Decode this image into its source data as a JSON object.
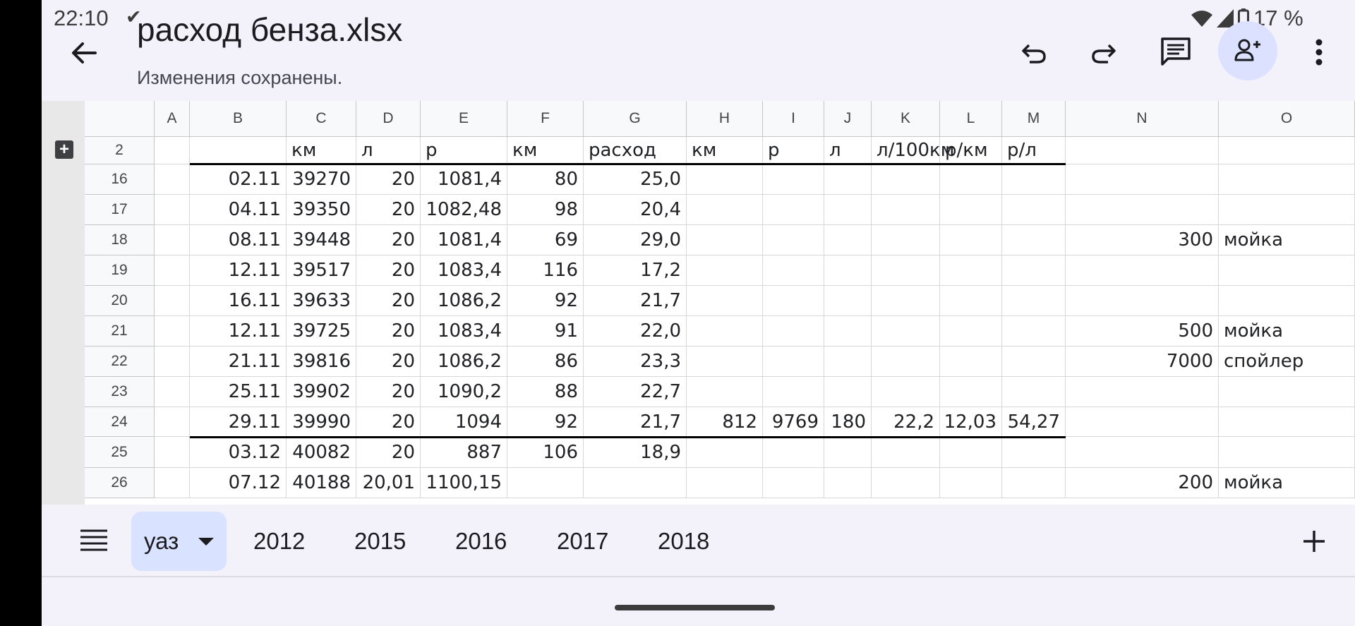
{
  "status_bar": {
    "time": "22:10",
    "battery": "17 %",
    "icons": [
      "check-icon",
      "wifi-icon",
      "signal-icon",
      "battery-icon"
    ]
  },
  "app_bar": {
    "title": "расход бенза.xlsx",
    "save_status": "Изменения сохранены.",
    "icons": [
      "back-arrow-icon",
      "undo-icon",
      "redo-icon",
      "comment-icon",
      "add-person-icon",
      "more-vert-icon"
    ],
    "accent": "#dbe1ff"
  },
  "grid": {
    "columns": [
      "A",
      "B",
      "C",
      "D",
      "E",
      "F",
      "G",
      "H",
      "I",
      "J",
      "K",
      "L",
      "M",
      "N",
      "O"
    ],
    "rows": [
      {
        "num": "2",
        "cells": [
          "",
          "",
          "км",
          "л",
          "р",
          "км",
          "расход",
          "км",
          "р",
          "л",
          "л/100км",
          "р/км",
          "р/л",
          "",
          ""
        ]
      },
      {
        "num": "16",
        "cells": [
          "",
          "02.11",
          "39270",
          "20",
          "1081,4",
          "80",
          "25,0",
          "",
          "",
          "",
          "",
          "",
          "",
          "",
          ""
        ]
      },
      {
        "num": "17",
        "cells": [
          "",
          "04.11",
          "39350",
          "20",
          "1082,48",
          "98",
          "20,4",
          "",
          "",
          "",
          "",
          "",
          "",
          "",
          ""
        ]
      },
      {
        "num": "18",
        "cells": [
          "",
          "08.11",
          "39448",
          "20",
          "1081,4",
          "69",
          "29,0",
          "",
          "",
          "",
          "",
          "",
          "",
          "300",
          "мойка"
        ]
      },
      {
        "num": "19",
        "cells": [
          "",
          "12.11",
          "39517",
          "20",
          "1083,4",
          "116",
          "17,2",
          "",
          "",
          "",
          "",
          "",
          "",
          "",
          ""
        ]
      },
      {
        "num": "20",
        "cells": [
          "",
          "16.11",
          "39633",
          "20",
          "1086,2",
          "92",
          "21,7",
          "",
          "",
          "",
          "",
          "",
          "",
          "",
          ""
        ]
      },
      {
        "num": "21",
        "cells": [
          "",
          "12.11",
          "39725",
          "20",
          "1083,4",
          "91",
          "22,0",
          "",
          "",
          "",
          "",
          "",
          "",
          "500",
          "мойка"
        ]
      },
      {
        "num": "22",
        "cells": [
          "",
          "21.11",
          "39816",
          "20",
          "1086,2",
          "86",
          "23,3",
          "",
          "",
          "",
          "",
          "",
          "",
          "7000",
          "спойлер"
        ]
      },
      {
        "num": "23",
        "cells": [
          "",
          "25.11",
          "39902",
          "20",
          "1090,2",
          "88",
          "22,7",
          "",
          "",
          "",
          "",
          "",
          "",
          "",
          ""
        ]
      },
      {
        "num": "24",
        "cells": [
          "",
          "29.11",
          "39990",
          "20",
          "1094",
          "92",
          "21,7",
          "812",
          "9769",
          "180",
          "22,2",
          "12,03",
          "54,27",
          "",
          ""
        ]
      },
      {
        "num": "25",
        "cells": [
          "",
          "03.12",
          "40082",
          "20",
          "887",
          "106",
          "18,9",
          "",
          "",
          "",
          "",
          "",
          "",
          "",
          ""
        ]
      },
      {
        "num": "26",
        "cells": [
          "",
          "07.12",
          "40188",
          "20,01",
          "1100,15",
          "",
          "",
          "",
          "",
          "",
          "",
          "",
          "",
          "200",
          "мойка"
        ]
      }
    ]
  },
  "sheets": {
    "tabs": [
      "уаз",
      "2012",
      "2015",
      "2016",
      "2017",
      "2018"
    ],
    "active": "уаз",
    "icons": [
      "sheet-list-icon",
      "dropdown-arrow-icon",
      "add-sheet-icon"
    ]
  }
}
